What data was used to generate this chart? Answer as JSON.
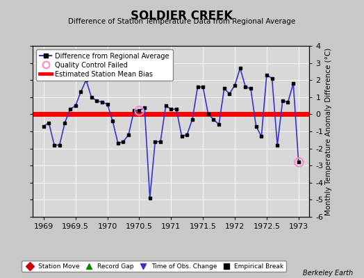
{
  "title": "SOLDIER CREEK",
  "subtitle": "Difference of Station Temperature Data from Regional Average",
  "ylabel": "Monthly Temperature Anomaly Difference (°C)",
  "xlabel_ticks": [
    1969,
    1969.5,
    1970,
    1970.5,
    1971,
    1971.5,
    1972,
    1972.5,
    1973
  ],
  "ylim": [
    -6,
    4
  ],
  "xlim": [
    1968.83,
    1973.17
  ],
  "mean_bias": 0.0,
  "background_color": "#c8c8c8",
  "plot_background": "#d8d8d8",
  "line_color": "#3333cc",
  "bias_color": "#ff0000",
  "marker_color": "#000000",
  "qc_fail_color": "#ff88cc",
  "watermark": "Berkeley Earth",
  "x": [
    1969.0,
    1969.083,
    1969.167,
    1969.25,
    1969.333,
    1969.417,
    1969.5,
    1969.583,
    1969.667,
    1969.75,
    1969.833,
    1969.917,
    1970.0,
    1970.083,
    1970.167,
    1970.25,
    1970.333,
    1970.417,
    1970.5,
    1970.583,
    1970.667,
    1970.75,
    1970.833,
    1970.917,
    1971.0,
    1971.083,
    1971.167,
    1971.25,
    1971.333,
    1971.417,
    1971.5,
    1971.583,
    1971.667,
    1971.75,
    1971.833,
    1971.917,
    1972.0,
    1972.083,
    1972.167,
    1972.25,
    1972.333,
    1972.417,
    1972.5,
    1972.583,
    1972.667,
    1972.75,
    1972.833,
    1972.917,
    1973.0
  ],
  "y": [
    -0.7,
    -0.5,
    -1.8,
    -1.8,
    -0.5,
    0.3,
    0.5,
    1.3,
    2.0,
    1.0,
    0.8,
    0.7,
    0.6,
    -0.4,
    -1.7,
    -1.6,
    -1.2,
    0.2,
    0.2,
    0.4,
    -4.9,
    -1.6,
    -1.6,
    0.5,
    0.3,
    0.3,
    -1.3,
    -1.2,
    -0.3,
    1.6,
    1.6,
    0.0,
    -0.3,
    -0.6,
    1.5,
    1.2,
    1.7,
    2.7,
    1.6,
    1.5,
    -0.7,
    -1.3,
    2.3,
    2.1,
    -1.8,
    0.8,
    0.7,
    1.8,
    -2.8
  ],
  "qc_fail_indices": [
    18,
    48
  ],
  "bottom_legend": [
    {
      "label": "Station Move",
      "color": "#cc0000",
      "marker": "D",
      "mfc": "#cc0000"
    },
    {
      "label": "Record Gap",
      "color": "#008800",
      "marker": "^",
      "mfc": "#008800"
    },
    {
      "label": "Time of Obs. Change",
      "color": "#3333cc",
      "marker": "v",
      "mfc": "#3333cc"
    },
    {
      "label": "Empirical Break",
      "color": "#000000",
      "marker": "s",
      "mfc": "#000000"
    }
  ]
}
